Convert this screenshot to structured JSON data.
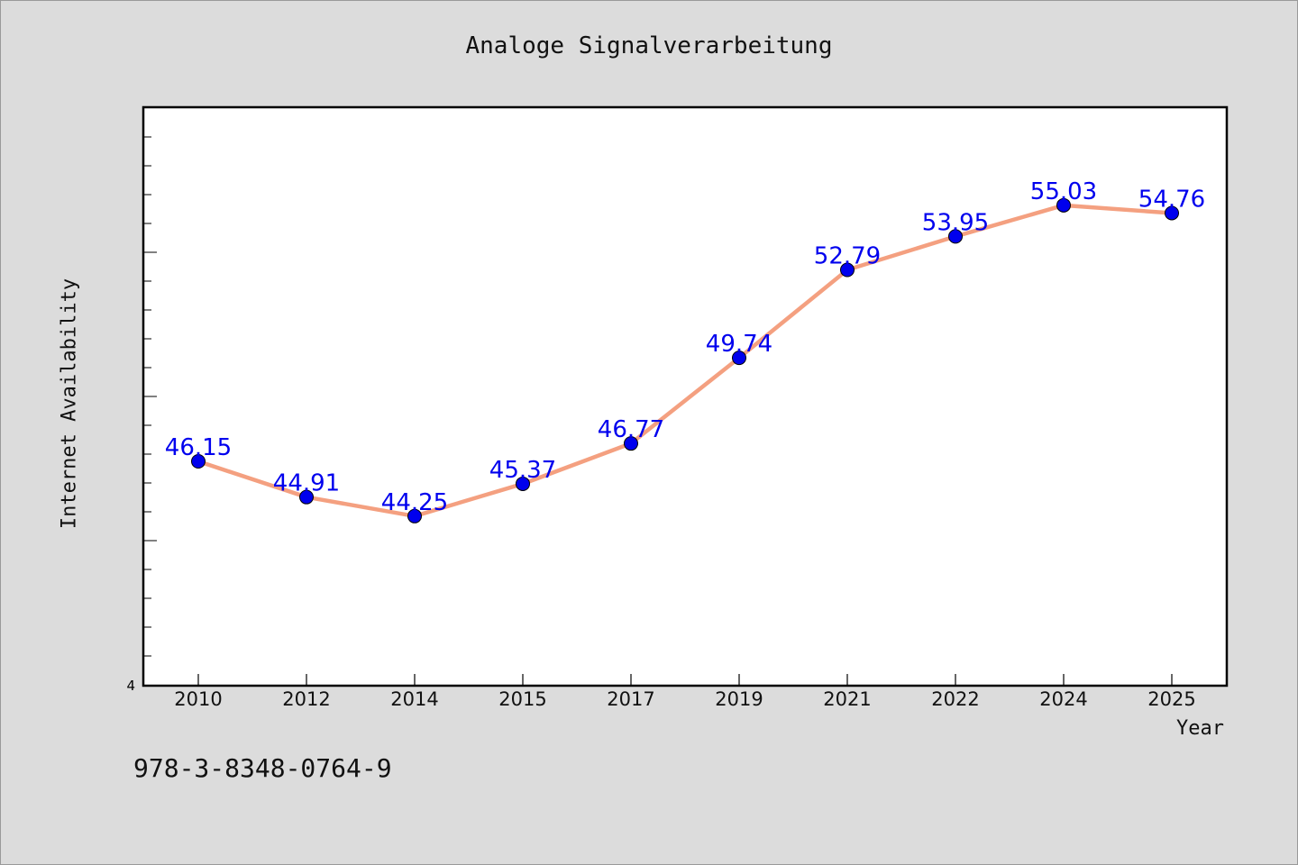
{
  "chart_data": {
    "type": "line",
    "title": "Analoge Signalverarbeitung",
    "xlabel": "Year",
    "ylabel": "Internet Availability",
    "categories": [
      "2010",
      "2012",
      "2014",
      "2015",
      "2017",
      "2019",
      "2021",
      "2022",
      "2024",
      "2025"
    ],
    "series": [
      {
        "values": [
          46.15,
          44.91,
          44.25,
          45.37,
          46.77,
          49.74,
          52.79,
          53.95,
          55.03,
          54.76
        ],
        "line_color": "#f4a080",
        "marker_color": "#0000ee",
        "label_color": "#0000ee"
      }
    ],
    "ylim": [
      38.4,
      58.4
    ],
    "y_tick_label": "4",
    "grid": false,
    "legend": "none"
  },
  "footer": {
    "isbn": "978-3-8348-0764-9"
  }
}
